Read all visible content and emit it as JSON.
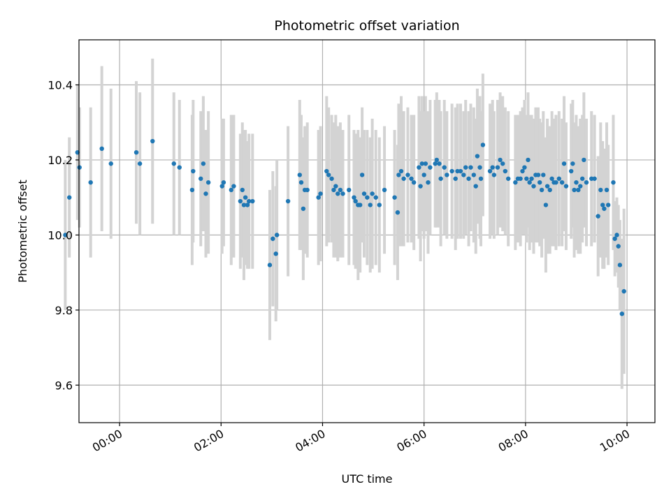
{
  "chart_data": {
    "type": "scatter",
    "title": "Photometric offset variation",
    "xlabel": "UTC time",
    "ylabel": "Photometric offset",
    "xlim": [
      -0.8,
      10.55
    ],
    "ylim": [
      9.5,
      10.52
    ],
    "grid": true,
    "x_ticks": [
      0,
      2,
      4,
      6,
      8,
      10
    ],
    "x_tick_labels": [
      "00:00",
      "02:00",
      "04:00",
      "06:00",
      "08:00",
      "10:00"
    ],
    "y_ticks": [
      9.6,
      9.8,
      10.0,
      10.2,
      10.4
    ],
    "y_tick_labels": [
      "9.6",
      "9.8",
      "10.0",
      "10.2",
      "10.4"
    ],
    "marker_color": "#1f77b4",
    "errorbar_color": "#d3d3d3",
    "series": [
      {
        "name": "offset",
        "points": [
          [
            -1.07,
            10.0,
            0.2
          ],
          [
            -0.99,
            10.1,
            0.16
          ],
          [
            -0.83,
            10.22,
            0.18
          ],
          [
            -0.79,
            10.18,
            0.16
          ],
          [
            -0.57,
            10.14,
            0.2
          ],
          [
            -0.35,
            10.23,
            0.22
          ],
          [
            -0.17,
            10.19,
            0.2
          ],
          [
            0.33,
            10.22,
            0.19
          ],
          [
            0.4,
            10.19,
            0.19
          ],
          [
            0.65,
            10.25,
            0.22
          ],
          [
            1.07,
            10.19,
            0.19
          ],
          [
            1.18,
            10.18,
            0.18
          ],
          [
            1.43,
            10.12,
            0.2
          ],
          [
            1.45,
            10.17,
            0.19
          ],
          [
            1.6,
            10.15,
            0.18
          ],
          [
            1.65,
            10.19,
            0.18
          ],
          [
            1.7,
            10.11,
            0.17
          ],
          [
            1.75,
            10.14,
            0.19
          ],
          [
            2.02,
            10.13,
            0.18
          ],
          [
            2.05,
            10.14,
            0.17
          ],
          [
            2.2,
            10.12,
            0.2
          ],
          [
            2.25,
            10.13,
            0.19
          ],
          [
            2.38,
            10.09,
            0.18
          ],
          [
            2.42,
            10.12,
            0.18
          ],
          [
            2.45,
            10.08,
            0.2
          ],
          [
            2.48,
            10.1,
            0.18
          ],
          [
            2.52,
            10.08,
            0.17
          ],
          [
            2.55,
            10.09,
            0.18
          ],
          [
            2.62,
            10.09,
            0.18
          ],
          [
            2.96,
            9.92,
            0.2
          ],
          [
            3.02,
            9.99,
            0.18
          ],
          [
            3.08,
            9.95,
            0.18
          ],
          [
            3.1,
            10.0,
            0.2
          ],
          [
            3.32,
            10.09,
            0.2
          ],
          [
            3.55,
            10.16,
            0.2
          ],
          [
            3.58,
            10.14,
            0.18
          ],
          [
            3.62,
            10.07,
            0.19
          ],
          [
            3.65,
            10.12,
            0.17
          ],
          [
            3.7,
            10.12,
            0.18
          ],
          [
            3.92,
            10.1,
            0.18
          ],
          [
            3.96,
            10.11,
            0.18
          ],
          [
            4.08,
            10.17,
            0.2
          ],
          [
            4.12,
            10.16,
            0.18
          ],
          [
            4.18,
            10.15,
            0.17
          ],
          [
            4.22,
            10.12,
            0.18
          ],
          [
            4.26,
            10.13,
            0.19
          ],
          [
            4.3,
            10.11,
            0.18
          ],
          [
            4.35,
            10.12,
            0.18
          ],
          [
            4.4,
            10.11,
            0.17
          ],
          [
            4.52,
            10.12,
            0.2
          ],
          [
            4.62,
            10.1,
            0.18
          ],
          [
            4.65,
            10.09,
            0.18
          ],
          [
            4.7,
            10.08,
            0.2
          ],
          [
            4.74,
            10.08,
            0.18
          ],
          [
            4.78,
            10.16,
            0.18
          ],
          [
            4.82,
            10.11,
            0.17
          ],
          [
            4.88,
            10.1,
            0.18
          ],
          [
            4.94,
            10.08,
            0.18
          ],
          [
            4.98,
            10.11,
            0.2
          ],
          [
            5.05,
            10.1,
            0.18
          ],
          [
            5.12,
            10.08,
            0.18
          ],
          [
            5.22,
            10.12,
            0.17
          ],
          [
            5.42,
            10.1,
            0.18
          ],
          [
            5.48,
            10.06,
            0.18
          ],
          [
            5.5,
            10.16,
            0.19
          ],
          [
            5.55,
            10.17,
            0.2
          ],
          [
            5.6,
            10.15,
            0.18
          ],
          [
            5.68,
            10.16,
            0.18
          ],
          [
            5.75,
            10.15,
            0.17
          ],
          [
            5.8,
            10.14,
            0.18
          ],
          [
            5.9,
            10.18,
            0.19
          ],
          [
            5.93,
            10.13,
            0.2
          ],
          [
            5.96,
            10.19,
            0.18
          ],
          [
            6.0,
            10.16,
            0.17
          ],
          [
            6.03,
            10.19,
            0.18
          ],
          [
            6.08,
            10.14,
            0.19
          ],
          [
            6.12,
            10.18,
            0.18
          ],
          [
            6.22,
            10.19,
            0.17
          ],
          [
            6.25,
            10.2,
            0.18
          ],
          [
            6.3,
            10.19,
            0.17
          ],
          [
            6.33,
            10.15,
            0.18
          ],
          [
            6.4,
            10.18,
            0.18
          ],
          [
            6.45,
            10.16,
            0.17
          ],
          [
            6.55,
            10.17,
            0.18
          ],
          [
            6.62,
            10.15,
            0.19
          ],
          [
            6.66,
            10.17,
            0.18
          ],
          [
            6.72,
            10.17,
            0.18
          ],
          [
            6.78,
            10.16,
            0.17
          ],
          [
            6.82,
            10.18,
            0.18
          ],
          [
            6.88,
            10.15,
            0.18
          ],
          [
            6.92,
            10.18,
            0.17
          ],
          [
            6.98,
            10.16,
            0.18
          ],
          [
            7.02,
            10.13,
            0.18
          ],
          [
            7.05,
            10.21,
            0.18
          ],
          [
            7.1,
            10.18,
            0.19
          ],
          [
            7.12,
            10.15,
            0.18
          ],
          [
            7.16,
            10.24,
            0.19
          ],
          [
            7.3,
            10.17,
            0.18
          ],
          [
            7.35,
            10.18,
            0.18
          ],
          [
            7.38,
            10.16,
            0.17
          ],
          [
            7.45,
            10.18,
            0.18
          ],
          [
            7.5,
            10.2,
            0.18
          ],
          [
            7.55,
            10.19,
            0.18
          ],
          [
            7.6,
            10.17,
            0.17
          ],
          [
            7.66,
            10.15,
            0.18
          ],
          [
            7.8,
            10.14,
            0.18
          ],
          [
            7.85,
            10.15,
            0.17
          ],
          [
            7.9,
            10.15,
            0.18
          ],
          [
            7.94,
            10.17,
            0.17
          ],
          [
            7.98,
            10.18,
            0.18
          ],
          [
            8.02,
            10.15,
            0.17
          ],
          [
            8.05,
            10.2,
            0.18
          ],
          [
            8.08,
            10.14,
            0.18
          ],
          [
            8.12,
            10.15,
            0.17
          ],
          [
            8.16,
            10.13,
            0.18
          ],
          [
            8.2,
            10.16,
            0.18
          ],
          [
            8.25,
            10.16,
            0.18
          ],
          [
            8.28,
            10.14,
            0.17
          ],
          [
            8.32,
            10.12,
            0.18
          ],
          [
            8.35,
            10.16,
            0.17
          ],
          [
            8.4,
            10.08,
            0.18
          ],
          [
            8.43,
            10.13,
            0.18
          ],
          [
            8.48,
            10.12,
            0.17
          ],
          [
            8.52,
            10.15,
            0.18
          ],
          [
            8.56,
            10.14,
            0.17
          ],
          [
            8.6,
            10.14,
            0.18
          ],
          [
            8.66,
            10.15,
            0.18
          ],
          [
            8.72,
            10.14,
            0.17
          ],
          [
            8.76,
            10.19,
            0.18
          ],
          [
            8.8,
            10.13,
            0.17
          ],
          [
            8.9,
            10.17,
            0.18
          ],
          [
            8.93,
            10.19,
            0.17
          ],
          [
            8.96,
            10.12,
            0.18
          ],
          [
            9.0,
            10.14,
            0.18
          ],
          [
            9.04,
            10.12,
            0.17
          ],
          [
            9.08,
            10.13,
            0.18
          ],
          [
            9.12,
            10.15,
            0.17
          ],
          [
            9.15,
            10.2,
            0.18
          ],
          [
            9.2,
            10.14,
            0.17
          ],
          [
            9.3,
            10.15,
            0.18
          ],
          [
            9.36,
            10.15,
            0.17
          ],
          [
            9.43,
            10.05,
            0.16
          ],
          [
            9.48,
            10.12,
            0.18
          ],
          [
            9.52,
            10.08,
            0.17
          ],
          [
            9.55,
            10.07,
            0.16
          ],
          [
            9.6,
            10.12,
            0.18
          ],
          [
            9.63,
            10.08,
            0.16
          ],
          [
            9.73,
            10.14,
            0.18
          ],
          [
            9.76,
            9.99,
            0.1
          ],
          [
            9.8,
            10.0,
            0.1
          ],
          [
            9.83,
            9.97,
            0.11
          ],
          [
            9.86,
            9.92,
            0.12
          ],
          [
            9.9,
            9.79,
            0.2
          ],
          [
            9.94,
            9.85,
            0.22
          ]
        ]
      }
    ]
  }
}
